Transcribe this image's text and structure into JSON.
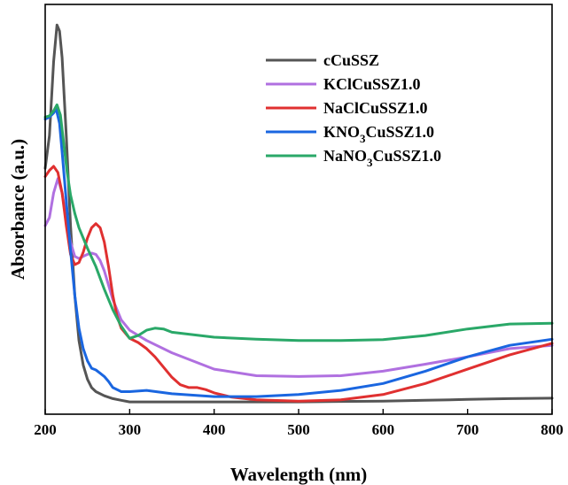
{
  "chart_data": {
    "type": "line",
    "xlabel": "Wavelength (nm)",
    "ylabel": "Absorbance (a.u.)",
    "xlim": [
      200,
      800
    ],
    "ylim": [
      0,
      1
    ],
    "xticks": [
      200,
      300,
      400,
      500,
      600,
      700,
      800
    ],
    "grid": false,
    "legend_position": "top-right",
    "series": [
      {
        "name": "cCuSSZ",
        "legend": {
          "main": "cCuSSZ"
        },
        "color": "#555555",
        "points": [
          [
            200,
            0.6
          ],
          [
            205,
            0.68
          ],
          [
            210,
            0.86
          ],
          [
            214,
            0.95
          ],
          [
            217,
            0.935
          ],
          [
            220,
            0.87
          ],
          [
            225,
            0.68
          ],
          [
            230,
            0.46
          ],
          [
            235,
            0.29
          ],
          [
            240,
            0.18
          ],
          [
            245,
            0.12
          ],
          [
            250,
            0.085
          ],
          [
            255,
            0.065
          ],
          [
            260,
            0.055
          ],
          [
            270,
            0.045
          ],
          [
            280,
            0.038
          ],
          [
            290,
            0.034
          ],
          [
            300,
            0.03
          ],
          [
            350,
            0.03
          ],
          [
            400,
            0.03
          ],
          [
            450,
            0.03
          ],
          [
            500,
            0.03
          ],
          [
            550,
            0.031
          ],
          [
            600,
            0.032
          ],
          [
            650,
            0.034
          ],
          [
            700,
            0.036
          ],
          [
            750,
            0.038
          ],
          [
            800,
            0.039
          ]
        ]
      },
      {
        "name": "KClCuSSZ1.0",
        "legend": {
          "main": "KClCuSSZ1.0"
        },
        "color": "#B070E0",
        "points": [
          [
            200,
            0.46
          ],
          [
            205,
            0.48
          ],
          [
            210,
            0.54
          ],
          [
            215,
            0.575
          ],
          [
            220,
            0.54
          ],
          [
            225,
            0.48
          ],
          [
            230,
            0.42
          ],
          [
            235,
            0.385
          ],
          [
            240,
            0.38
          ],
          [
            245,
            0.385
          ],
          [
            250,
            0.39
          ],
          [
            255,
            0.393
          ],
          [
            260,
            0.39
          ],
          [
            265,
            0.375
          ],
          [
            270,
            0.35
          ],
          [
            275,
            0.315
          ],
          [
            280,
            0.28
          ],
          [
            290,
            0.23
          ],
          [
            300,
            0.205
          ],
          [
            320,
            0.18
          ],
          [
            350,
            0.15
          ],
          [
            400,
            0.11
          ],
          [
            450,
            0.094
          ],
          [
            500,
            0.092
          ],
          [
            550,
            0.094
          ],
          [
            600,
            0.105
          ],
          [
            650,
            0.122
          ],
          [
            700,
            0.14
          ],
          [
            750,
            0.16
          ],
          [
            800,
            0.168
          ]
        ]
      },
      {
        "name": "NaClCuSSZ1.0",
        "legend": {
          "main": "NaClCuSSZ1.0"
        },
        "color": "#E03030",
        "points": [
          [
            200,
            0.58
          ],
          [
            205,
            0.595
          ],
          [
            210,
            0.605
          ],
          [
            215,
            0.59
          ],
          [
            220,
            0.54
          ],
          [
            225,
            0.46
          ],
          [
            230,
            0.39
          ],
          [
            235,
            0.365
          ],
          [
            240,
            0.37
          ],
          [
            245,
            0.395
          ],
          [
            250,
            0.43
          ],
          [
            255,
            0.455
          ],
          [
            260,
            0.465
          ],
          [
            265,
            0.455
          ],
          [
            270,
            0.42
          ],
          [
            275,
            0.36
          ],
          [
            280,
            0.29
          ],
          [
            285,
            0.24
          ],
          [
            290,
            0.21
          ],
          [
            300,
            0.185
          ],
          [
            310,
            0.175
          ],
          [
            320,
            0.16
          ],
          [
            330,
            0.14
          ],
          [
            340,
            0.115
          ],
          [
            350,
            0.09
          ],
          [
            360,
            0.072
          ],
          [
            370,
            0.065
          ],
          [
            380,
            0.065
          ],
          [
            390,
            0.06
          ],
          [
            400,
            0.052
          ],
          [
            420,
            0.042
          ],
          [
            450,
            0.035
          ],
          [
            500,
            0.032
          ],
          [
            550,
            0.035
          ],
          [
            600,
            0.048
          ],
          [
            650,
            0.075
          ],
          [
            700,
            0.11
          ],
          [
            750,
            0.145
          ],
          [
            800,
            0.173
          ]
        ]
      },
      {
        "name": "KNO3CuSSZ1.0",
        "legend": {
          "main": "KNO",
          "sub": "3",
          "rest": "CuSSZ1.0"
        },
        "color": "#1A66E0",
        "points": [
          [
            200,
            0.72
          ],
          [
            205,
            0.725
          ],
          [
            210,
            0.735
          ],
          [
            213,
            0.745
          ],
          [
            217,
            0.71
          ],
          [
            220,
            0.64
          ],
          [
            225,
            0.52
          ],
          [
            230,
            0.4
          ],
          [
            235,
            0.29
          ],
          [
            240,
            0.21
          ],
          [
            245,
            0.16
          ],
          [
            250,
            0.13
          ],
          [
            255,
            0.112
          ],
          [
            260,
            0.108
          ],
          [
            265,
            0.1
          ],
          [
            270,
            0.092
          ],
          [
            275,
            0.08
          ],
          [
            280,
            0.065
          ],
          [
            290,
            0.055
          ],
          [
            300,
            0.055
          ],
          [
            320,
            0.058
          ],
          [
            350,
            0.05
          ],
          [
            400,
            0.043
          ],
          [
            450,
            0.043
          ],
          [
            500,
            0.048
          ],
          [
            550,
            0.058
          ],
          [
            600,
            0.075
          ],
          [
            650,
            0.105
          ],
          [
            700,
            0.14
          ],
          [
            750,
            0.168
          ],
          [
            800,
            0.183
          ]
        ]
      },
      {
        "name": "NaNO3CuSSZ1.0",
        "legend": {
          "main": "NaNO",
          "sub": "3",
          "rest": "CuSSZ1.0"
        },
        "color": "#2AA868",
        "points": [
          [
            200,
            0.725
          ],
          [
            205,
            0.728
          ],
          [
            210,
            0.74
          ],
          [
            214,
            0.755
          ],
          [
            218,
            0.73
          ],
          [
            222,
            0.66
          ],
          [
            226,
            0.59
          ],
          [
            230,
            0.535
          ],
          [
            235,
            0.49
          ],
          [
            240,
            0.455
          ],
          [
            250,
            0.405
          ],
          [
            260,
            0.36
          ],
          [
            270,
            0.305
          ],
          [
            280,
            0.255
          ],
          [
            290,
            0.215
          ],
          [
            300,
            0.185
          ],
          [
            310,
            0.192
          ],
          [
            320,
            0.205
          ],
          [
            330,
            0.21
          ],
          [
            340,
            0.208
          ],
          [
            350,
            0.2
          ],
          [
            400,
            0.188
          ],
          [
            450,
            0.183
          ],
          [
            500,
            0.18
          ],
          [
            550,
            0.18
          ],
          [
            600,
            0.182
          ],
          [
            650,
            0.192
          ],
          [
            700,
            0.208
          ],
          [
            750,
            0.22
          ],
          [
            800,
            0.222
          ]
        ]
      }
    ]
  }
}
